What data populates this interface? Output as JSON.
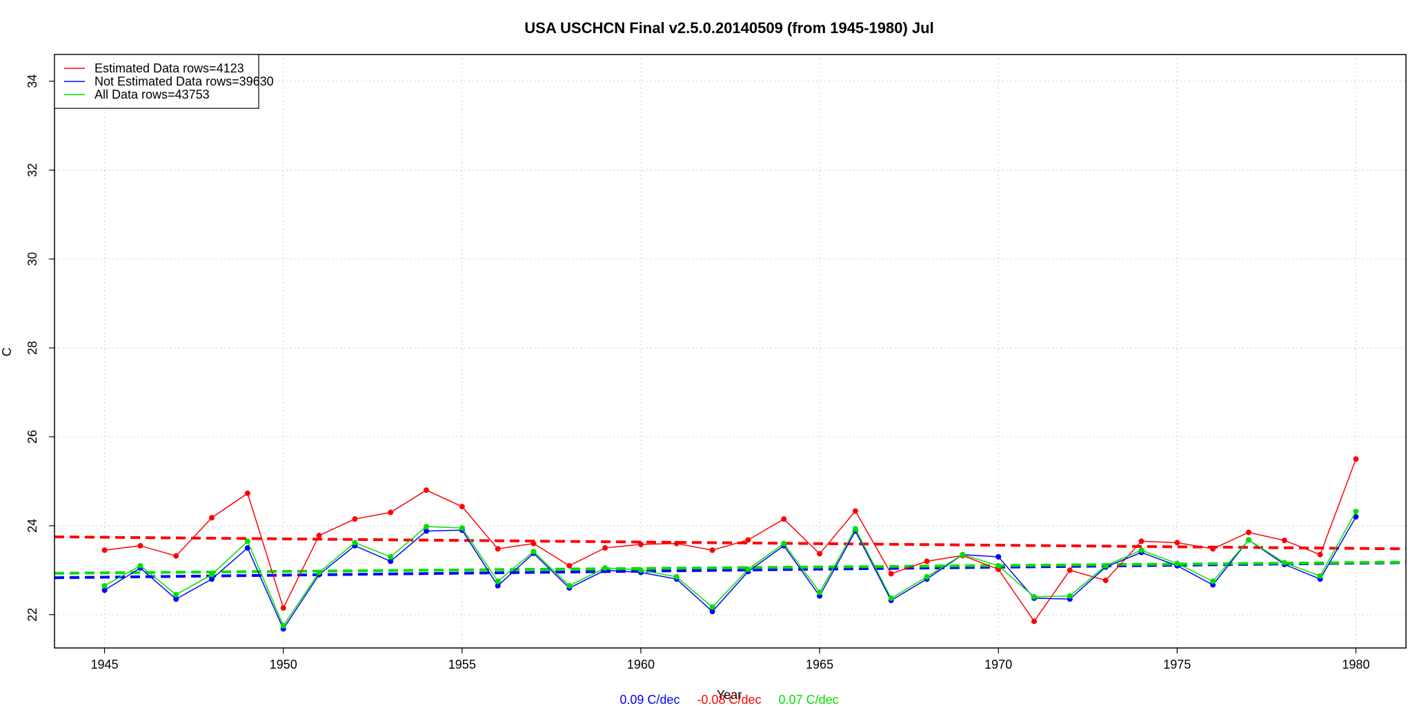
{
  "chart_data": {
    "type": "line",
    "title": "USA USCHCN Final v2.5.0.20140509 (from 1945-1980) Jul",
    "xlabel": "Year",
    "ylabel": "C",
    "xlim": [
      1943.6,
      1981.4
    ],
    "ylim": [
      21.25,
      34.6
    ],
    "x_ticks": [
      1945,
      1950,
      1955,
      1960,
      1965,
      1970,
      1975,
      1980
    ],
    "y_ticks": [
      22,
      24,
      26,
      28,
      30,
      32,
      34
    ],
    "grid": true,
    "legend_position": "top-left",
    "x": [
      1945,
      1946,
      1947,
      1948,
      1949,
      1950,
      1951,
      1952,
      1953,
      1954,
      1955,
      1956,
      1957,
      1958,
      1959,
      1960,
      1961,
      1962,
      1963,
      1964,
      1965,
      1966,
      1967,
      1968,
      1969,
      1970,
      1971,
      1972,
      1973,
      1974,
      1975,
      1976,
      1977,
      1978,
      1979,
      1980
    ],
    "series": [
      {
        "name": "Estimated Data rows=4123",
        "color": "#ff0000",
        "values": [
          23.45,
          23.55,
          23.32,
          24.18,
          24.73,
          22.15,
          23.78,
          24.15,
          24.3,
          24.8,
          24.43,
          23.48,
          23.6,
          23.1,
          23.5,
          23.58,
          23.6,
          23.45,
          23.68,
          24.15,
          23.37,
          24.33,
          22.92,
          23.2,
          23.33,
          23.02,
          21.85,
          23.0,
          22.77,
          23.65,
          23.62,
          23.48,
          23.85,
          23.67,
          23.35,
          25.5
        ],
        "trend": [
          23.75,
          23.48
        ]
      },
      {
        "name": "Not Estimated Data rows=39630",
        "color": "#0000ff",
        "values": [
          22.55,
          23.05,
          22.35,
          22.8,
          23.5,
          21.68,
          22.9,
          23.55,
          23.2,
          23.88,
          23.9,
          22.65,
          23.38,
          22.6,
          23.0,
          22.95,
          22.8,
          22.07,
          22.97,
          23.55,
          22.42,
          23.88,
          22.32,
          22.8,
          23.35,
          23.3,
          22.37,
          22.35,
          23.07,
          23.4,
          23.1,
          22.67,
          23.68,
          23.13,
          22.8,
          24.2
        ],
        "trend": [
          22.83,
          23.17
        ]
      },
      {
        "name": "All Data rows=43753",
        "color": "#00e000",
        "values": [
          22.65,
          23.1,
          22.45,
          22.9,
          23.65,
          21.75,
          22.95,
          23.62,
          23.3,
          23.98,
          23.95,
          22.75,
          23.42,
          22.65,
          23.05,
          23.0,
          22.85,
          22.17,
          23.02,
          23.6,
          22.5,
          23.93,
          22.37,
          22.85,
          23.35,
          23.1,
          22.4,
          22.42,
          23.1,
          23.45,
          23.15,
          22.75,
          23.68,
          23.17,
          22.87,
          24.32
        ],
        "trend": [
          22.93,
          23.18
        ]
      }
    ],
    "trend_labels": [
      {
        "text": "0.09 C/dec",
        "color": "#0000ff"
      },
      {
        "text": "-0.08 C/dec",
        "color": "#ff0000"
      },
      {
        "text": "0.07 C/dec",
        "color": "#00e000"
      }
    ]
  }
}
